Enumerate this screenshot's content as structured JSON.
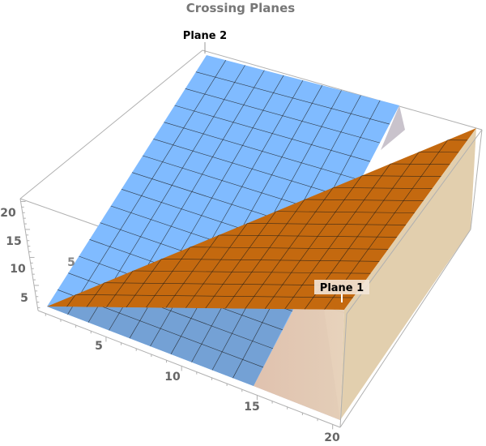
{
  "chart_data": {
    "type": "surface3d",
    "title": "Crossing Planes",
    "series": [
      {
        "name": "Plane 1",
        "color": "#c4690f",
        "filling_color": "#e2cfae"
      },
      {
        "name": "Plane 2",
        "color": "#80bbff"
      }
    ],
    "x_ticks": [
      "5",
      "10",
      "15",
      "20"
    ],
    "y_ticks": [
      "5"
    ],
    "z_ticks": [
      "20",
      "15",
      "10",
      "5"
    ],
    "box": true,
    "mesh": true
  }
}
